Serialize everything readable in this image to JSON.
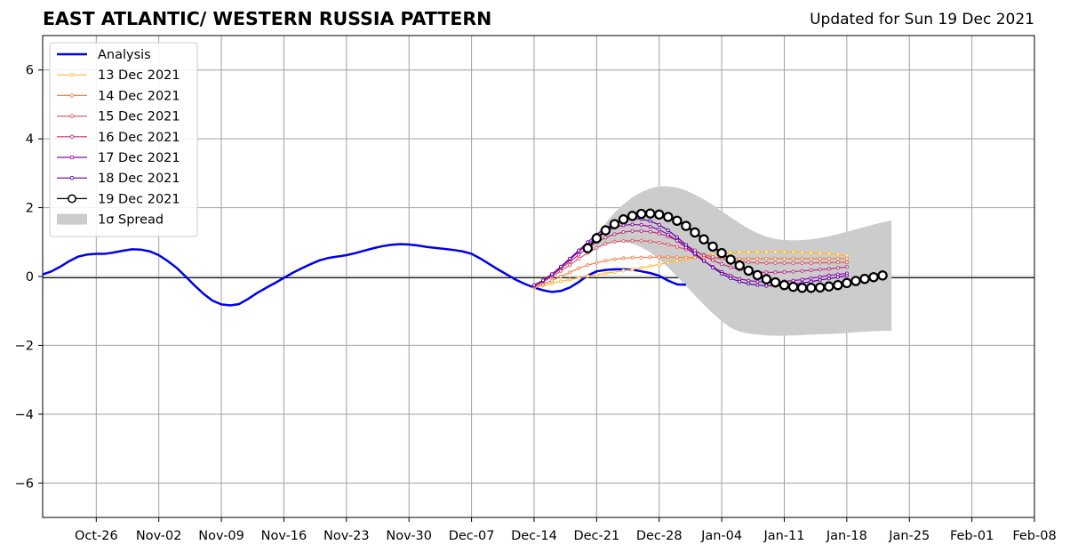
{
  "header": {
    "title": "EAST ATLANTIC/ WESTERN RUSSIA PATTERN",
    "updated": "Updated for Sun 19 Dec 2021"
  },
  "chart_data": {
    "type": "line",
    "title": "EAST ATLANTIC/ WESTERN RUSSIA PATTERN",
    "xlabel": "",
    "ylabel": "",
    "x_ticks": [
      "Oct-26",
      "Nov-02",
      "Nov-09",
      "Nov-16",
      "Nov-23",
      "Nov-30",
      "Dec-07",
      "Dec-14",
      "Dec-21",
      "Dec-28",
      "Jan-04",
      "Jan-11",
      "Jan-18",
      "Jan-25",
      "Feb-01",
      "Feb-08"
    ],
    "x_tick_dates": [
      "2021-10-26",
      "2021-11-02",
      "2021-11-09",
      "2021-11-16",
      "2021-11-23",
      "2021-11-30",
      "2021-12-07",
      "2021-12-14",
      "2021-12-21",
      "2021-12-28",
      "2022-01-04",
      "2022-01-11",
      "2022-01-18",
      "2022-01-25",
      "2022-02-01",
      "2022-02-08"
    ],
    "xlim": [
      "2021-10-20",
      "2022-02-08"
    ],
    "ylim": [
      -7,
      7
    ],
    "y_ticks": [
      -6,
      -4,
      -2,
      0,
      2,
      4,
      6
    ],
    "y_tick_labels": [
      "−6",
      "−4",
      "−2",
      "0",
      "2",
      "4",
      "6"
    ],
    "grid": true,
    "zero_line": true,
    "legend_position": "top-left",
    "legend": [
      {
        "label": "Analysis",
        "kind": "line",
        "color": "#0000ee"
      },
      {
        "label": "13 Dec 2021",
        "kind": "marker-line",
        "color": "#fcb735"
      },
      {
        "label": "14 Dec 2021",
        "kind": "marker-line",
        "color": "#f0814f"
      },
      {
        "label": "15 Dec 2021",
        "kind": "marker-line",
        "color": "#db5c68"
      },
      {
        "label": "16 Dec 2021",
        "kind": "marker-line",
        "color": "#b83289"
      },
      {
        "label": "17 Dec 2021",
        "kind": "marker-line",
        "color": "#8b0aa5"
      },
      {
        "label": "18 Dec 2021",
        "kind": "marker-line",
        "color": "#5c01a6"
      },
      {
        "label": "19 Dec 2021",
        "kind": "big-marker-line",
        "color": "#000000"
      },
      {
        "label": "1σ Spread",
        "kind": "band",
        "color": "#cccccc"
      }
    ],
    "analysis": {
      "name": "Analysis",
      "color": "#0000ee",
      "start_date": "2021-10-20",
      "values": [
        0.06,
        0.15,
        0.29,
        0.45,
        0.58,
        0.64,
        0.66,
        0.66,
        0.7,
        0.75,
        0.79,
        0.78,
        0.73,
        0.62,
        0.45,
        0.25,
        0.0,
        -0.26,
        -0.5,
        -0.7,
        -0.81,
        -0.84,
        -0.8,
        -0.65,
        -0.48,
        -0.33,
        -0.19,
        -0.04,
        0.11,
        0.24,
        0.36,
        0.47,
        0.54,
        0.58,
        0.62,
        0.68,
        0.75,
        0.82,
        0.88,
        0.92,
        0.94,
        0.93,
        0.9,
        0.86,
        0.83,
        0.8,
        0.77,
        0.73,
        0.66,
        0.52,
        0.36,
        0.2,
        0.05,
        -0.1,
        -0.22,
        -0.32,
        -0.4,
        -0.45,
        -0.42,
        -0.32,
        -0.16,
        0.03,
        0.15,
        0.19,
        0.21,
        0.21,
        0.2,
        0.15,
        0.1,
        0.02,
        -0.12,
        -0.23,
        -0.24
      ]
    },
    "forecasts": [
      {
        "name": "13 Dec 2021",
        "color": "#fcb735",
        "start_date": "2021-12-14",
        "values": [
          -0.33,
          -0.26,
          -0.2,
          -0.14,
          -0.09,
          -0.04,
          0.01,
          0.05,
          0.09,
          0.13,
          0.17,
          0.21,
          0.25,
          0.3,
          0.35,
          0.4,
          0.45,
          0.5,
          0.55,
          0.6,
          0.64,
          0.67,
          0.69,
          0.7,
          0.71,
          0.72,
          0.72,
          0.72,
          0.72,
          0.71,
          0.7,
          0.69,
          0.68,
          0.66,
          0.64,
          0.61
        ]
      },
      {
        "name": "14 Dec 2021",
        "color": "#f0814f",
        "start_date": "2021-12-14",
        "values": [
          -0.3,
          -0.22,
          -0.12,
          0.0,
          0.12,
          0.24,
          0.33,
          0.4,
          0.46,
          0.5,
          0.53,
          0.55,
          0.55,
          0.56,
          0.56,
          0.56,
          0.56,
          0.55,
          0.55,
          0.54,
          0.54,
          0.53,
          0.53,
          0.52,
          0.52,
          0.52,
          0.52,
          0.52,
          0.52,
          0.52,
          0.52,
          0.52,
          0.52,
          0.52,
          0.52,
          0.52
        ]
      },
      {
        "name": "15 Dec 2021",
        "color": "#db5c68",
        "start_date": "2021-12-14",
        "values": [
          -0.28,
          -0.16,
          -0.01,
          0.16,
          0.33,
          0.52,
          0.68,
          0.83,
          0.95,
          1.01,
          1.03,
          1.04,
          1.04,
          1.02,
          0.98,
          0.93,
          0.86,
          0.79,
          0.71,
          0.63,
          0.57,
          0.51,
          0.47,
          0.43,
          0.41,
          0.4,
          0.39,
          0.39,
          0.39,
          0.39,
          0.39,
          0.39,
          0.4,
          0.4,
          0.41,
          0.41
        ]
      },
      {
        "name": "16 Dec 2021",
        "color": "#b83289",
        "start_date": "2021-12-14",
        "values": [
          -0.27,
          -0.14,
          0.03,
          0.23,
          0.43,
          0.63,
          0.83,
          1.0,
          1.13,
          1.23,
          1.29,
          1.32,
          1.32,
          1.3,
          1.25,
          1.16,
          1.05,
          0.91,
          0.76,
          0.61,
          0.47,
          0.36,
          0.27,
          0.2,
          0.16,
          0.13,
          0.12,
          0.12,
          0.13,
          0.14,
          0.16,
          0.18,
          0.2,
          0.22,
          0.25,
          0.28
        ]
      },
      {
        "name": "17 Dec 2021",
        "color": "#8b0aa5",
        "start_date": "2021-12-14",
        "values": [
          -0.26,
          -0.12,
          0.06,
          0.27,
          0.49,
          0.72,
          0.94,
          1.14,
          1.3,
          1.42,
          1.49,
          1.51,
          1.5,
          1.45,
          1.36,
          1.22,
          1.04,
          0.84,
          0.64,
          0.45,
          0.28,
          0.13,
          0.02,
          -0.07,
          -0.12,
          -0.15,
          -0.16,
          -0.16,
          -0.14,
          -0.12,
          -0.09,
          -0.05,
          -0.01,
          0.03,
          0.06,
          0.09
        ]
      },
      {
        "name": "18 Dec 2021",
        "color": "#5c01a6",
        "start_date": "2021-12-14",
        "values": [
          -0.25,
          -0.11,
          0.07,
          0.29,
          0.52,
          0.76,
          1.0,
          1.22,
          1.4,
          1.54,
          1.64,
          1.68,
          1.67,
          1.61,
          1.5,
          1.34,
          1.14,
          0.92,
          0.68,
          0.46,
          0.26,
          0.08,
          -0.05,
          -0.15,
          -0.21,
          -0.25,
          -0.27,
          -0.27,
          -0.26,
          -0.23,
          -0.19,
          -0.15,
          -0.1,
          -0.06,
          -0.02,
          0.02
        ]
      },
      {
        "name": "19 Dec 2021",
        "color": "#000000",
        "start_date": "2021-12-20",
        "values": [
          0.82,
          1.11,
          1.34,
          1.52,
          1.66,
          1.76,
          1.82,
          1.83,
          1.8,
          1.73,
          1.62,
          1.47,
          1.28,
          1.08,
          0.87,
          0.68,
          0.49,
          0.32,
          0.17,
          0.04,
          -0.08,
          -0.17,
          -0.25,
          -0.3,
          -0.33,
          -0.33,
          -0.32,
          -0.29,
          -0.25,
          -0.19,
          -0.13,
          -0.07,
          -0.02,
          0.03
        ]
      }
    ],
    "spread": {
      "name": "1σ Spread",
      "color": "#cccccc",
      "start_date": "2021-12-20",
      "upper": [
        0.9,
        1.25,
        1.55,
        1.85,
        2.1,
        2.3,
        2.45,
        2.56,
        2.62,
        2.62,
        2.58,
        2.5,
        2.38,
        2.24,
        2.08,
        1.9,
        1.72,
        1.55,
        1.39,
        1.26,
        1.16,
        1.09,
        1.06,
        1.05,
        1.06,
        1.08,
        1.12,
        1.17,
        1.23,
        1.3,
        1.37,
        1.44,
        1.51,
        1.57,
        1.63
      ],
      "lower": [
        0.7,
        0.85,
        0.95,
        1.0,
        1.0,
        0.95,
        0.85,
        0.7,
        0.5,
        0.26,
        0.0,
        -0.27,
        -0.55,
        -0.82,
        -1.07,
        -1.3,
        -1.49,
        -1.6,
        -1.66,
        -1.69,
        -1.71,
        -1.72,
        -1.72,
        -1.71,
        -1.7,
        -1.69,
        -1.68,
        -1.67,
        -1.66,
        -1.64,
        -1.62,
        -1.6,
        -1.59,
        -1.58,
        -1.58
      ]
    }
  }
}
